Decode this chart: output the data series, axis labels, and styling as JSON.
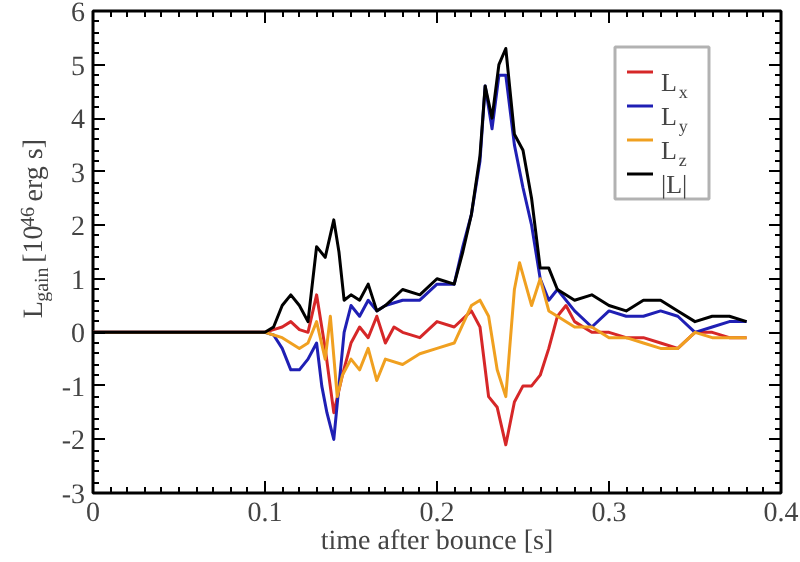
{
  "chart_data": {
    "type": "line",
    "xlabel": "time after bounce [s]",
    "ylabel": "L$_{gain}$ [10$^{46}$ erg s]",
    "xlim": [
      0,
      0.4
    ],
    "ylim": [
      -3,
      6
    ],
    "xticks": [
      0,
      0.1,
      0.2,
      0.3,
      0.4
    ],
    "yticks": [
      -3,
      -2,
      -1,
      0,
      1,
      2,
      3,
      4,
      5,
      6
    ],
    "grid": false,
    "legend": "top right",
    "marker": "none",
    "line_style": "solid",
    "series": [
      {
        "name": "L$_{x}$",
        "color": "#d62728",
        "x": [
          0,
          0.1,
          0.105,
          0.11,
          0.115,
          0.12,
          0.125,
          0.13,
          0.135,
          0.14,
          0.145,
          0.15,
          0.155,
          0.16,
          0.165,
          0.17,
          0.175,
          0.18,
          0.19,
          0.2,
          0.21,
          0.22,
          0.225,
          0.23,
          0.235,
          0.24,
          0.245,
          0.25,
          0.255,
          0.26,
          0.265,
          0.27,
          0.275,
          0.28,
          0.29,
          0.3,
          0.31,
          0.32,
          0.33,
          0.34,
          0.35,
          0.36,
          0.37,
          0.38
        ],
        "values": [
          0,
          0,
          0.05,
          0.1,
          0.2,
          0.05,
          0.0,
          0.7,
          -0.3,
          -1.5,
          -0.8,
          -0.2,
          0.1,
          -0.1,
          0.3,
          -0.2,
          0.1,
          0.0,
          -0.1,
          0.2,
          0.1,
          0.4,
          0.1,
          -1.2,
          -1.4,
          -2.1,
          -1.3,
          -1.0,
          -1.0,
          -0.8,
          -0.3,
          0.3,
          0.5,
          0.2,
          0.0,
          0.0,
          -0.1,
          -0.1,
          -0.2,
          -0.3,
          0.0,
          0.0,
          -0.1,
          -0.1
        ]
      },
      {
        "name": "L$_{y}$",
        "color": "#1f1fb4",
        "x": [
          0,
          0.1,
          0.105,
          0.11,
          0.115,
          0.12,
          0.125,
          0.13,
          0.133,
          0.136,
          0.14,
          0.143,
          0.146,
          0.15,
          0.155,
          0.16,
          0.165,
          0.17,
          0.18,
          0.19,
          0.2,
          0.21,
          0.215,
          0.22,
          0.225,
          0.228,
          0.232,
          0.236,
          0.24,
          0.245,
          0.25,
          0.255,
          0.26,
          0.265,
          0.27,
          0.28,
          0.29,
          0.3,
          0.31,
          0.32,
          0.33,
          0.34,
          0.35,
          0.36,
          0.37,
          0.38
        ],
        "values": [
          0,
          0,
          -0.05,
          -0.3,
          -0.7,
          -0.7,
          -0.5,
          -0.2,
          -1.0,
          -1.5,
          -2.0,
          -1.0,
          0.0,
          0.5,
          0.3,
          0.6,
          0.4,
          0.5,
          0.6,
          0.6,
          0.9,
          0.9,
          1.6,
          2.2,
          3.2,
          4.6,
          3.8,
          4.8,
          4.8,
          3.5,
          2.7,
          2.0,
          1.0,
          0.6,
          0.8,
          0.4,
          0.1,
          0.4,
          0.3,
          0.3,
          0.4,
          0.3,
          0.0,
          0.1,
          0.2,
          0.2
        ]
      },
      {
        "name": "L$_{z}$",
        "color": "#f0a020",
        "x": [
          0,
          0.1,
          0.105,
          0.11,
          0.12,
          0.125,
          0.13,
          0.135,
          0.138,
          0.142,
          0.145,
          0.15,
          0.155,
          0.16,
          0.165,
          0.17,
          0.18,
          0.19,
          0.2,
          0.21,
          0.22,
          0.225,
          0.23,
          0.235,
          0.24,
          0.245,
          0.248,
          0.255,
          0.26,
          0.265,
          0.27,
          0.28,
          0.29,
          0.3,
          0.31,
          0.32,
          0.33,
          0.34,
          0.35,
          0.36,
          0.37,
          0.38
        ],
        "values": [
          0,
          0,
          -0.05,
          -0.1,
          -0.3,
          -0.2,
          0.2,
          -0.5,
          0.3,
          -1.2,
          -0.8,
          -0.5,
          -0.7,
          -0.3,
          -0.9,
          -0.5,
          -0.6,
          -0.4,
          -0.3,
          -0.2,
          0.5,
          0.6,
          0.3,
          -0.7,
          -1.2,
          0.8,
          1.3,
          0.5,
          1.0,
          0.4,
          0.3,
          0.1,
          0.1,
          -0.1,
          -0.1,
          -0.2,
          -0.3,
          -0.3,
          0.0,
          -0.1,
          -0.1,
          -0.1
        ]
      },
      {
        "name": "|L|",
        "color": "#000000",
        "x": [
          0,
          0.1,
          0.105,
          0.11,
          0.115,
          0.12,
          0.125,
          0.13,
          0.135,
          0.14,
          0.143,
          0.146,
          0.15,
          0.155,
          0.16,
          0.165,
          0.17,
          0.18,
          0.19,
          0.2,
          0.21,
          0.215,
          0.22,
          0.225,
          0.228,
          0.232,
          0.236,
          0.24,
          0.245,
          0.25,
          0.255,
          0.26,
          0.265,
          0.27,
          0.28,
          0.29,
          0.3,
          0.31,
          0.32,
          0.33,
          0.34,
          0.35,
          0.36,
          0.37,
          0.38
        ],
        "values": [
          0,
          0,
          0.1,
          0.5,
          0.7,
          0.5,
          0.2,
          1.6,
          1.4,
          2.1,
          1.5,
          0.6,
          0.7,
          0.6,
          0.9,
          0.4,
          0.5,
          0.8,
          0.7,
          1.0,
          0.9,
          1.5,
          2.2,
          3.3,
          4.6,
          4.0,
          5.0,
          5.3,
          3.7,
          3.4,
          2.5,
          1.2,
          1.2,
          0.8,
          0.6,
          0.7,
          0.5,
          0.4,
          0.6,
          0.6,
          0.4,
          0.2,
          0.3,
          0.3,
          0.2
        ]
      }
    ]
  }
}
